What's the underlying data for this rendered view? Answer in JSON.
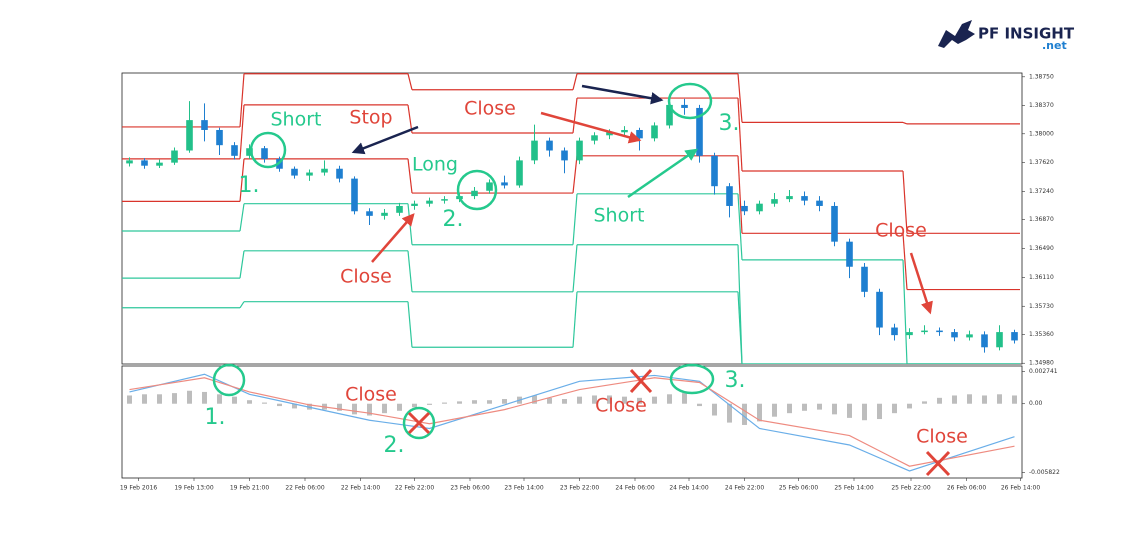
{
  "logo": {
    "name": "PF INSIGHT",
    "suffix": ".net"
  },
  "chart_data": [
    {
      "type": "candlestick",
      "up_color": "#22c08a",
      "down_color": "#1e7fd0",
      "xlim": [
        -0.5,
        59.5
      ],
      "ylim": [
        1.3497,
        1.388
      ],
      "yticks": [
        {
          "value": 1.3875,
          "label": "1.38750"
        },
        {
          "value": 1.3837,
          "label": "1.38370"
        },
        {
          "value": 1.38,
          "label": "1.38000"
        },
        {
          "value": 1.3762,
          "label": "1.37620"
        },
        {
          "value": 1.3724,
          "label": "1.37240"
        },
        {
          "value": 1.3687,
          "label": "1.36870"
        },
        {
          "value": 1.3649,
          "label": "1.36490"
        },
        {
          "value": 1.3611,
          "label": "1.36110"
        },
        {
          "value": 1.3573,
          "label": "1.35730"
        },
        {
          "value": 1.3536,
          "label": "1.35360"
        },
        {
          "value": 1.3498,
          "label": "1.34980"
        }
      ],
      "open": [
        1.3761,
        1.3765,
        1.3758,
        1.3762,
        1.3778,
        1.3818,
        1.3805,
        1.3785,
        1.3771,
        1.3781,
        1.3767,
        1.3754,
        1.3745,
        1.3749,
        1.3754,
        1.3741,
        1.3698,
        1.3692,
        1.3696,
        1.3705,
        1.3708,
        1.3712,
        1.3714,
        1.3718,
        1.3725,
        1.3736,
        1.3732,
        1.3765,
        1.3791,
        1.3778,
        1.3765,
        1.3791,
        1.3798,
        1.3802,
        1.3805,
        1.3794,
        1.3811,
        1.3838,
        1.3834,
        1.3771,
        1.3731,
        1.3705,
        1.3698,
        1.3708,
        1.3714,
        1.3718,
        1.3712,
        1.3705,
        1.3658,
        1.3625,
        1.3592,
        1.3545,
        1.3535,
        1.3539,
        1.3541,
        1.3539,
        1.3532,
        1.3536,
        1.3519,
        1.3539
      ],
      "high": [
        1.3769,
        1.3768,
        1.3766,
        1.3782,
        1.3843,
        1.384,
        1.3808,
        1.3789,
        1.3786,
        1.3784,
        1.377,
        1.3757,
        1.3753,
        1.3765,
        1.3758,
        1.3744,
        1.3702,
        1.3701,
        1.3709,
        1.3712,
        1.3716,
        1.3718,
        1.3722,
        1.373,
        1.374,
        1.3745,
        1.377,
        1.3812,
        1.3795,
        1.3782,
        1.3795,
        1.3802,
        1.3806,
        1.381,
        1.3808,
        1.3815,
        1.3848,
        1.3846,
        1.3838,
        1.3775,
        1.3735,
        1.3712,
        1.3712,
        1.3722,
        1.3726,
        1.3724,
        1.3718,
        1.371,
        1.3662,
        1.363,
        1.3596,
        1.355,
        1.3544,
        1.3548,
        1.3545,
        1.3543,
        1.3541,
        1.354,
        1.3548,
        1.3542
      ],
      "low": [
        1.3757,
        1.3754,
        1.3755,
        1.3759,
        1.3775,
        1.379,
        1.3772,
        1.3766,
        1.3767,
        1.3762,
        1.375,
        1.3741,
        1.3738,
        1.3745,
        1.3736,
        1.3694,
        1.368,
        1.3687,
        1.3692,
        1.37,
        1.3704,
        1.3708,
        1.371,
        1.3714,
        1.3721,
        1.3728,
        1.3729,
        1.376,
        1.377,
        1.3748,
        1.376,
        1.3786,
        1.3793,
        1.3797,
        1.3778,
        1.379,
        1.3807,
        1.3825,
        1.3762,
        1.372,
        1.369,
        1.3693,
        1.3694,
        1.3704,
        1.371,
        1.3706,
        1.3698,
        1.3652,
        1.361,
        1.3585,
        1.3535,
        1.3528,
        1.353,
        1.3536,
        1.3534,
        1.3527,
        1.3528,
        1.3512,
        1.3515,
        1.3524
      ],
      "close": [
        1.3765,
        1.3758,
        1.3762,
        1.3778,
        1.3818,
        1.3805,
        1.3785,
        1.3771,
        1.3781,
        1.3767,
        1.3754,
        1.3745,
        1.3749,
        1.3754,
        1.3741,
        1.3698,
        1.3692,
        1.3696,
        1.3705,
        1.3708,
        1.3712,
        1.3714,
        1.3718,
        1.3725,
        1.3736,
        1.3732,
        1.3765,
        1.3791,
        1.3778,
        1.3765,
        1.3791,
        1.3798,
        1.3802,
        1.3805,
        1.3794,
        1.3811,
        1.3838,
        1.3834,
        1.3771,
        1.3731,
        1.3705,
        1.3698,
        1.3708,
        1.3714,
        1.3718,
        1.3712,
        1.3705,
        1.3658,
        1.3625,
        1.3592,
        1.3545,
        1.3535,
        1.3539,
        1.3541,
        1.3539,
        1.3532,
        1.3536,
        1.3519,
        1.3539,
        1.3528
      ],
      "channels": [
        {
          "color": "#d9342b",
          "edges": [
            -0.5,
            7.5,
            18.7,
            29.7,
            40.7,
            51.7,
            59.5
          ],
          "values": [
            1.3809,
            1.3879,
            1.3858,
            1.3879,
            1.3815,
            1.3813
          ]
        },
        {
          "color": "#d9342b",
          "edges": [
            -0.5,
            7.5,
            18.7,
            29.7,
            40.7,
            51.7,
            59.5
          ],
          "values": [
            1.3767,
            1.3838,
            1.3801,
            1.3847,
            1.3751,
            1.3669
          ]
        },
        {
          "color": "#d9342b",
          "edges": [
            -0.5,
            7.5,
            18.7,
            29.7,
            40.7,
            51.7,
            59.5
          ],
          "values": [
            1.3711,
            1.3767,
            1.3722,
            1.3771,
            1.3669,
            1.3595
          ]
        },
        {
          "color": "#2ec79b",
          "edges": [
            -0.5,
            7.5,
            18.7,
            29.7,
            40.7,
            51.7,
            59.5
          ],
          "values": [
            1.3672,
            1.3708,
            1.3654,
            1.3721,
            1.3634,
            1.3497
          ]
        },
        {
          "color": "#2ec79b",
          "edges": [
            -0.5,
            7.5,
            18.7,
            29.7,
            40.7,
            51.7,
            59.5
          ],
          "values": [
            1.361,
            1.3646,
            1.3592,
            1.3654,
            1.3497,
            1.3497
          ]
        },
        {
          "color": "#2ec79b",
          "edges": [
            -0.5,
            7.5,
            18.7,
            29.7,
            40.7,
            51.7,
            59.5
          ],
          "values": [
            1.3571,
            1.3579,
            1.3519,
            1.3592,
            1.3497,
            1.3497
          ]
        }
      ],
      "annotations": [
        "Short",
        "Stop",
        "Close",
        "Long",
        "Close",
        "Short",
        "Close",
        "1.",
        "2.",
        "3."
      ]
    },
    {
      "type": "macd",
      "xlim": [
        -0.5,
        59.5
      ],
      "ylim": [
        -0.0063,
        0.0032
      ],
      "yticks": [
        0.002741,
        {
          "value": 0,
          "label": "0.00"
        },
        -0.005822
      ],
      "xticks": [
        {
          "value": 0.6,
          "label": "19 Feb 2016"
        },
        {
          "value": 4.3,
          "label": "19 Feb 13:00"
        },
        {
          "value": 8.0,
          "label": "19 Feb 21:00"
        },
        {
          "value": 11.7,
          "label": "22 Feb 06:00"
        },
        {
          "value": 15.4,
          "label": "22 Feb 14:00"
        },
        {
          "value": 19.0,
          "label": "22 Feb 22:00"
        },
        {
          "value": 22.7,
          "label": "23 Feb 06:00"
        },
        {
          "value": 26.3,
          "label": "23 Feb 14:00"
        },
        {
          "value": 30.0,
          "label": "23 Feb 22:00"
        },
        {
          "value": 33.7,
          "label": "24 Feb 06:00"
        },
        {
          "value": 37.3,
          "label": "24 Feb 14:00"
        },
        {
          "value": 41.0,
          "label": "24 Feb 22:00"
        },
        {
          "value": 44.6,
          "label": "25 Feb 06:00"
        },
        {
          "value": 48.3,
          "label": "25 Feb 14:00"
        },
        {
          "value": 52.1,
          "label": "25 Feb 22:00"
        },
        {
          "value": 55.8,
          "label": "26 Feb 06:00"
        },
        {
          "value": 59.4,
          "label": "26 Feb 14:00"
        }
      ],
      "histogram": {
        "color": "#bdbdbd",
        "values": [
          0.0007,
          0.0008,
          0.0008,
          0.0009,
          0.0011,
          0.001,
          0.0008,
          0.0006,
          0.0003,
          0.0001,
          -0.0002,
          -0.0004,
          -0.0005,
          -0.0005,
          -0.0006,
          -0.0009,
          -0.001,
          -0.0008,
          -0.0006,
          -0.0003,
          -0.0001,
          0.0001,
          0.0002,
          0.0003,
          0.0003,
          0.0004,
          0.0006,
          0.0007,
          0.0005,
          0.0004,
          0.0006,
          0.0007,
          0.0007,
          0.0006,
          0.0005,
          0.0006,
          0.0008,
          0.0009,
          -0.0002,
          -0.001,
          -0.0016,
          -0.0018,
          -0.0015,
          -0.0011,
          -0.0008,
          -0.0006,
          -0.0005,
          -0.0009,
          -0.0012,
          -0.0014,
          -0.0013,
          -0.0008,
          -0.0004,
          0.0002,
          0.0005,
          0.0007,
          0.0008,
          0.0007,
          0.0008,
          0.0007
        ]
      },
      "series": [
        {
          "color": "#6aaee8",
          "x": [
            0,
            5,
            8,
            12,
            16,
            20,
            25,
            30,
            35,
            38,
            42,
            48,
            52,
            59
          ],
          "values": [
            0.001,
            0.0025,
            0.0008,
            -0.0003,
            -0.0014,
            -0.0021,
            -0.0001,
            0.0019,
            0.0024,
            0.0019,
            -0.0021,
            -0.0035,
            -0.0057,
            -0.0028
          ]
        },
        {
          "color": "#ee8b80",
          "x": [
            0,
            5,
            8,
            12,
            16,
            20,
            25,
            30,
            35,
            38,
            42,
            48,
            52,
            59
          ],
          "values": [
            0.0012,
            0.0022,
            0.001,
            -0.0001,
            -0.0008,
            -0.0017,
            -0.0005,
            0.0012,
            0.0022,
            0.0018,
            -0.0014,
            -0.0027,
            -0.0053,
            -0.0036
          ]
        }
      ],
      "annotations": [
        "Close",
        "1.",
        "2.",
        "Close",
        "3.",
        "Close"
      ]
    }
  ]
}
